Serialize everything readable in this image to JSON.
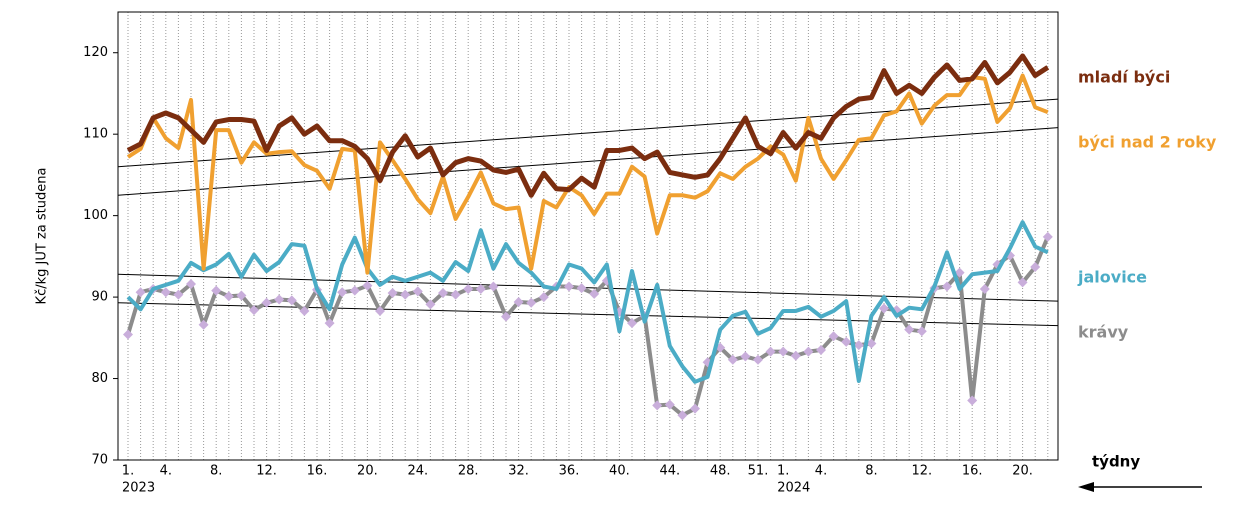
{
  "chart_data": {
    "type": "line",
    "y_label": "Kč/kg JUT za studena",
    "x_label": "týdny",
    "categories": [
      "1.",
      null,
      null,
      "4.",
      null,
      null,
      null,
      "8.",
      null,
      null,
      null,
      "12.",
      null,
      null,
      null,
      "16.",
      null,
      null,
      null,
      "20.",
      null,
      null,
      null,
      "24.",
      null,
      null,
      null,
      "28.",
      null,
      null,
      null,
      "32.",
      null,
      null,
      null,
      "36.",
      null,
      null,
      null,
      "40.",
      null,
      null,
      null,
      "44.",
      null,
      null,
      null,
      "48.",
      null,
      null,
      "51.",
      null,
      "1.",
      null,
      null,
      "4.",
      null,
      null,
      null,
      "8.",
      null,
      null,
      null,
      "12.",
      null,
      null,
      null,
      "16.",
      null,
      null,
      null,
      "20.",
      null,
      null
    ],
    "x_groups": [
      {
        "label": "2023",
        "start": 0
      },
      {
        "label": "2024",
        "start": 52
      }
    ],
    "ylim": [
      70,
      125
    ],
    "yticks": [
      70,
      80,
      90,
      100,
      110,
      120
    ],
    "grid": "vertical",
    "series": [
      {
        "name": "mladí býci",
        "color": "#7b2d0f",
        "trend": [
          106,
          114.3
        ],
        "values": [
          108,
          108.8,
          112,
          112.6,
          112,
          110.5,
          109,
          111.5,
          111.8,
          111.8,
          111.6,
          108,
          111,
          112,
          110,
          111,
          109.2,
          109.2,
          108.5,
          107,
          104.3,
          107.8,
          109.8,
          107.2,
          108.3,
          105,
          106.5,
          107,
          106.7,
          105.6,
          105.3,
          105.7,
          102.5,
          105.2,
          103.3,
          103.2,
          104.6,
          103.5,
          108,
          108,
          108.3,
          107,
          107.8,
          105.3,
          105,
          104.7,
          105,
          107,
          109.5,
          112,
          108.5,
          107.6,
          110.2,
          108.3,
          110.2,
          109.5,
          112,
          113.4,
          114.3,
          114.5,
          117.8,
          115,
          116,
          115,
          117,
          118.5,
          116.6,
          116.8,
          118.8,
          116.3,
          117.6,
          119.6,
          117.2,
          118.2
        ]
      },
      {
        "name": "býci nad 2 roky",
        "color": "#f0a030",
        "trend": [
          102.5,
          110.8
        ],
        "values": [
          107.2,
          108.2,
          112,
          109.5,
          108.3,
          114.2,
          93.5,
          110.5,
          110.5,
          106.5,
          109,
          107.6,
          107.8,
          107.9,
          106.2,
          105.5,
          103.3,
          108.2,
          108,
          93,
          109,
          106.8,
          104.5,
          102,
          100.3,
          104.8,
          99.6,
          102.3,
          105.3,
          101.5,
          100.8,
          101,
          93.5,
          101.8,
          101,
          103.5,
          102.5,
          100.2,
          102.7,
          102.7,
          106,
          104.8,
          97.8,
          102.5,
          102.5,
          102.2,
          103,
          105.2,
          104.5,
          106,
          107,
          108.5,
          107.5,
          104.3,
          112,
          107,
          104.5,
          106.8,
          109.3,
          109.5,
          112.3,
          112.8,
          115,
          111.3,
          113.5,
          114.8,
          114.8,
          117,
          116.8,
          111.5,
          113.2,
          117.2,
          113.3,
          112.7
        ]
      },
      {
        "name": "jalovice",
        "color": "#4bacc6",
        "trend": [
          92.8,
          89.5
        ],
        "values": [
          90,
          88.5,
          91,
          91.5,
          92,
          94.2,
          93.3,
          94,
          95.3,
          92.5,
          95.2,
          93.2,
          94.3,
          96.5,
          96.3,
          91,
          88.5,
          94,
          97.3,
          93.5,
          91.5,
          92.5,
          92,
          92.5,
          93,
          92,
          94.3,
          93.2,
          98.2,
          93.5,
          96.5,
          94.2,
          93,
          91.3,
          91,
          94,
          93.5,
          91.8,
          94,
          85.8,
          93.2,
          87,
          91.5,
          84,
          81.5,
          79.6,
          80.2,
          86,
          87.7,
          88.2,
          85.5,
          86.2,
          88.3,
          88.3,
          88.8,
          87.6,
          88.3,
          89.5,
          79.7,
          87.7,
          90,
          87.7,
          88.7,
          88.5,
          91.3,
          95.5,
          91,
          92.8,
          93,
          93.2,
          96,
          99.2,
          96.2,
          95.5
        ]
      },
      {
        "name": "krávy",
        "color": "#8c8c8c",
        "marker_color": "#c9aedb",
        "trend": [
          89.3,
          86.5
        ],
        "values": [
          85.4,
          90.6,
          91,
          90.6,
          90.3,
          91.6,
          86.6,
          90.8,
          90.1,
          90.2,
          88.4,
          89.3,
          89.7,
          89.6,
          88.3,
          90.9,
          86.8,
          90.6,
          90.8,
          91.4,
          88.3,
          90.5,
          90.3,
          90.7,
          89.1,
          90.5,
          90.3,
          91,
          91,
          91.3,
          87.6,
          89.4,
          89.3,
          90,
          91.3,
          91.3,
          91.1,
          90.4,
          92,
          88.2,
          86.8,
          87.7,
          76.7,
          76.8,
          75.5,
          76.3,
          82,
          83.8,
          82.3,
          82.7,
          82.3,
          83.3,
          83.3,
          82.8,
          83.3,
          83.5,
          85.2,
          84.5,
          84.1,
          84.3,
          88.6,
          88.4,
          86,
          85.8,
          91.1,
          91.3,
          93,
          77.3,
          91,
          94,
          95.1,
          91.8,
          93.7,
          97.4
        ]
      }
    ]
  }
}
